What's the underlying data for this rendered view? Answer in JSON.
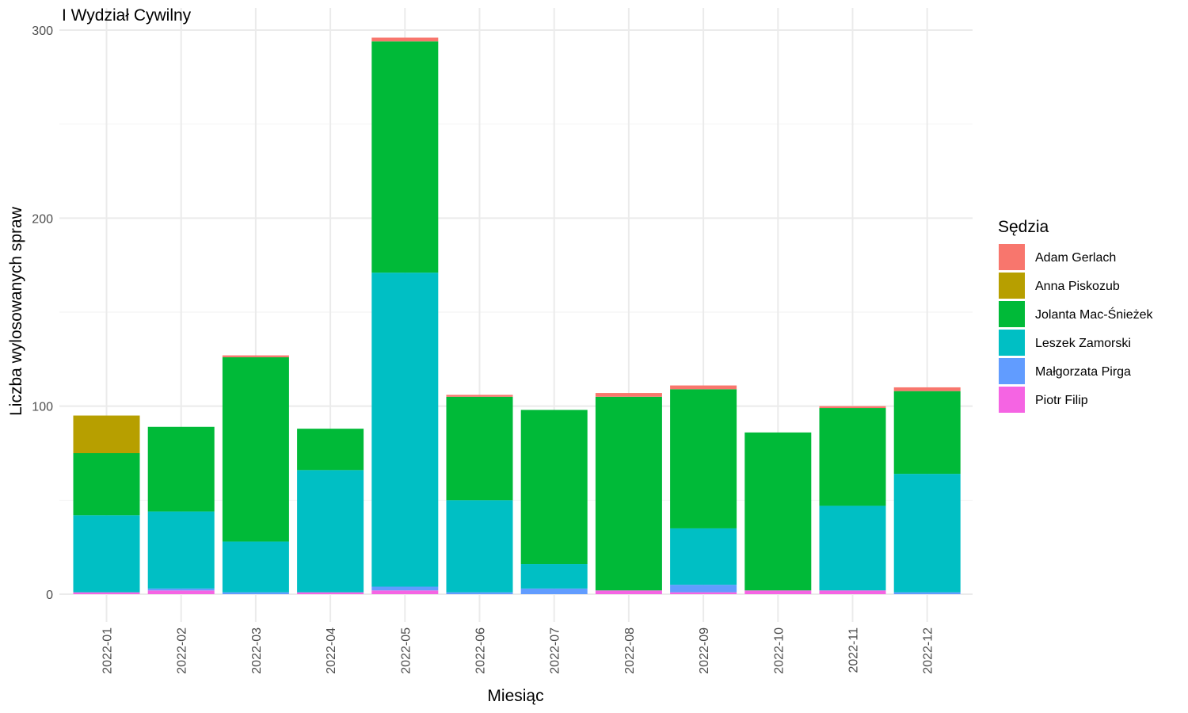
{
  "chart_data": {
    "type": "bar",
    "stacked": true,
    "title": "I Wydział Cywilny",
    "xlabel": "Miesiąc",
    "ylabel": "Liczba wylosowanych spraw",
    "ylim": [
      0,
      300
    ],
    "y_ticks": [
      "0",
      "100",
      "200",
      "300"
    ],
    "grid": true,
    "legend_position": "right",
    "legend_title": "Sędzia",
    "categories": [
      "2022-01",
      "2022-02",
      "2022-03",
      "2022-04",
      "2022-05",
      "2022-06",
      "2022-07",
      "2022-08",
      "2022-09",
      "2022-10",
      "2022-11",
      "2022-12"
    ],
    "series": [
      {
        "name": "Piotr Filip",
        "color": "#F564E3",
        "values": [
          1,
          2,
          0,
          1,
          2,
          0,
          0,
          2,
          1,
          2,
          2,
          0
        ]
      },
      {
        "name": "Małgorzata Pirga",
        "color": "#619CFF",
        "values": [
          0,
          1,
          1,
          0,
          2,
          1,
          3,
          0,
          4,
          0,
          0,
          1
        ]
      },
      {
        "name": "Leszek Zamorski",
        "color": "#00BFC4",
        "values": [
          41,
          41,
          27,
          65,
          167,
          49,
          13,
          0,
          30,
          0,
          45,
          63
        ]
      },
      {
        "name": "Jolanta Mac-Śnieżek",
        "color": "#00BA38",
        "values": [
          33,
          45,
          98,
          22,
          123,
          55,
          82,
          103,
          74,
          84,
          52,
          44
        ]
      },
      {
        "name": "Anna Piskozub",
        "color": "#B79F00",
        "values": [
          20,
          0,
          0,
          0,
          0,
          0,
          0,
          0,
          0,
          0,
          0,
          0
        ]
      },
      {
        "name": "Adam Gerlach",
        "color": "#F8766D",
        "values": [
          0,
          0,
          1,
          0,
          2,
          1,
          0,
          2,
          2,
          0,
          1,
          2
        ]
      }
    ],
    "legend_order": [
      "Adam Gerlach",
      "Anna Piskozub",
      "Jolanta Mac-Śnieżek",
      "Leszek Zamorski",
      "Małgorzata Pirga",
      "Piotr Filip"
    ]
  }
}
